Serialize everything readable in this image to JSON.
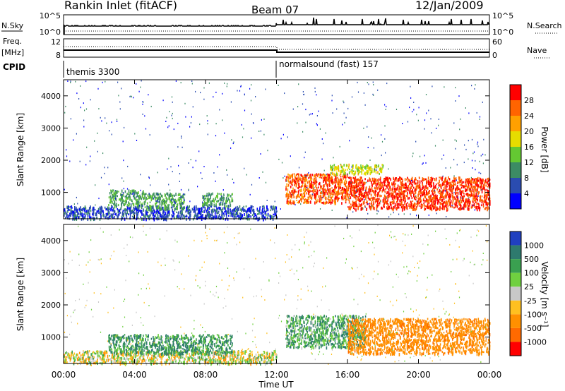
{
  "header": {
    "title": "Rankin Inlet (fitACF)",
    "beam": "Beam 07",
    "date": "12/Jan/2009"
  },
  "top_panel": {
    "nsky_label": "N.Sky",
    "nsearch_label": "N.Search",
    "y_ticks_left": [
      "10^5",
      "10^0"
    ],
    "y_ticks_right": [
      "10^5",
      "10^0"
    ]
  },
  "freq_panel": {
    "freq_label": "Freq.",
    "unit_label": "[MHz]",
    "nave_label": "Nave",
    "y_ticks_left": [
      "12",
      "8"
    ],
    "y_ticks_right": [
      "60",
      "0"
    ]
  },
  "cpid_panel": {
    "label": "CPID",
    "programs": [
      {
        "name": "themis 3300",
        "start_hour": 0.0
      },
      {
        "name": "normalsound (fast) 157",
        "start_hour": 12.0
      }
    ]
  },
  "x_axis": {
    "label": "Time UT",
    "ticks": [
      "00:00",
      "04:00",
      "08:00",
      "12:00",
      "16:00",
      "20:00",
      "00:00"
    ],
    "tick_hours": [
      0,
      4,
      8,
      12,
      16,
      20,
      24
    ]
  },
  "colors": {
    "power": [
      "#0000ff",
      "#2a4cb0",
      "#3c8c64",
      "#64c832",
      "#e6dc00",
      "#ffa000",
      "#ff6400",
      "#ff0000"
    ],
    "velocity": [
      "#2040c0",
      "#2e7a6e",
      "#3aa050",
      "#70d040",
      "#c8c8c8",
      "#ffc020",
      "#ff9000",
      "#ff6a00",
      "#ff0000"
    ]
  },
  "chart_data": [
    {
      "type": "heatmap",
      "name": "power",
      "ylabel": "Slant Range [km]",
      "xlabel": "Time UT",
      "xlim": [
        0,
        24
      ],
      "ylim": [
        180,
        4500
      ],
      "y_ticks": [
        1000,
        2000,
        3000,
        4000
      ],
      "colorbar": {
        "label": "Power [dB]",
        "ticks": [
          "4",
          "8",
          "12",
          "16",
          "20",
          "24",
          "28"
        ],
        "range": [
          0,
          30
        ]
      },
      "features": [
        {
          "from_hour": 0.0,
          "to_hour": 12.0,
          "range_km": [
            200,
            600
          ],
          "level": 4
        },
        {
          "from_hour": 2.5,
          "to_hour": 4.5,
          "range_km": [
            600,
            1100
          ],
          "level": 10
        },
        {
          "from_hour": 4.5,
          "to_hour": 6.8,
          "range_km": [
            500,
            1000
          ],
          "level": 10
        },
        {
          "from_hour": 7.8,
          "to_hour": 9.5,
          "range_km": [
            600,
            1000
          ],
          "level": 10
        },
        {
          "from_hour": 12.5,
          "to_hour": 16.0,
          "range_km": [
            700,
            1600
          ],
          "level": 26
        },
        {
          "from_hour": 16.0,
          "to_hour": 24.0,
          "range_km": [
            500,
            1500
          ],
          "level": 28
        },
        {
          "from_hour": 15.0,
          "to_hour": 18.0,
          "range_km": [
            1600,
            1900
          ],
          "level": 16
        }
      ]
    },
    {
      "type": "heatmap",
      "name": "velocity",
      "ylabel": "Slant Range [km]",
      "xlabel": "Time UT",
      "xlim": [
        0,
        24
      ],
      "ylim": [
        180,
        4500
      ],
      "y_ticks": [
        1000,
        2000,
        3000,
        4000
      ],
      "colorbar": {
        "label": "Velocity [m s⁻¹]",
        "ticks": [
          "1000",
          "500",
          "100",
          "25",
          "-25",
          "-100",
          "-500",
          "-1000"
        ],
        "range": [
          -1200,
          1200
        ]
      },
      "features": [
        {
          "from_hour": 0.0,
          "to_hour": 12.0,
          "range_km": [
            200,
            600
          ],
          "velocity": 0
        },
        {
          "from_hour": 2.5,
          "to_hour": 9.5,
          "range_km": [
            500,
            1100
          ],
          "velocity": 200
        },
        {
          "from_hour": 12.5,
          "to_hour": 17.0,
          "range_km": [
            700,
            1700
          ],
          "velocity": 150
        },
        {
          "from_hour": 16.0,
          "to_hour": 24.0,
          "range_km": [
            500,
            1600
          ],
          "velocity": -300
        }
      ]
    }
  ]
}
